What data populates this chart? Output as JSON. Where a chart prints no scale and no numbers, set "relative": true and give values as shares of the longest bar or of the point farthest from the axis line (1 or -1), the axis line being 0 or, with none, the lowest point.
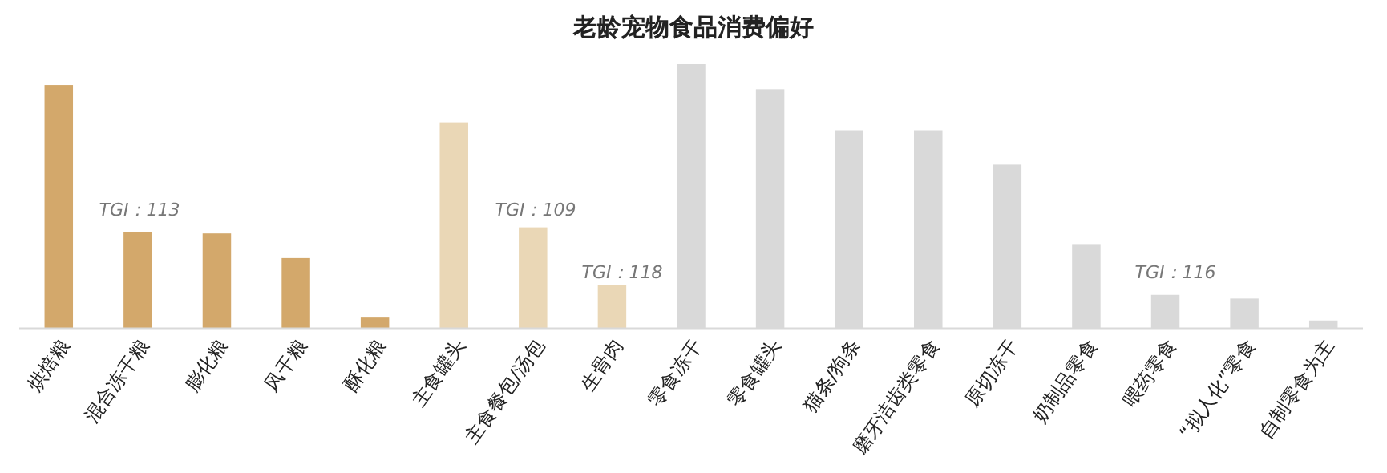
{
  "chart_data": {
    "type": "bar",
    "title": "老龄宠物食品消费偏好",
    "relative": true,
    "categories": [
      "烘焙粮",
      "混合冻干粮",
      "膨化粮",
      "风干粮",
      "酥化粮",
      "主食罐头",
      "主食餐包/汤包",
      "生骨肉",
      "零食冻干",
      "零食罐头",
      "猫条/狗条",
      "磨牙洁齿类零食",
      "原切冻干",
      "奶制品零食",
      "喂药零食",
      "“拟人化”零食",
      "自制零食为主"
    ],
    "values": [
      0.921,
      0.366,
      0.36,
      0.267,
      0.042,
      0.78,
      0.383,
      0.166,
      1,
      0.905,
      0.75,
      0.75,
      0.62,
      0.32,
      0.128,
      0.114,
      0.031
    ],
    "colors": [
      "#d3a86b",
      "#d3a86b",
      "#d3a86b",
      "#d3a86b",
      "#d3a86b",
      "#ead7b6",
      "#ead7b6",
      "#ead7b6",
      "#d9d9d9",
      "#d9d9d9",
      "#d9d9d9",
      "#d9d9d9",
      "#d9d9d9",
      "#d9d9d9",
      "#d9d9d9",
      "#d9d9d9",
      "#d9d9d9"
    ],
    "annotations": [
      "TGI：113",
      "TGI：109",
      "TGI：118",
      "TGI：116"
    ]
  }
}
